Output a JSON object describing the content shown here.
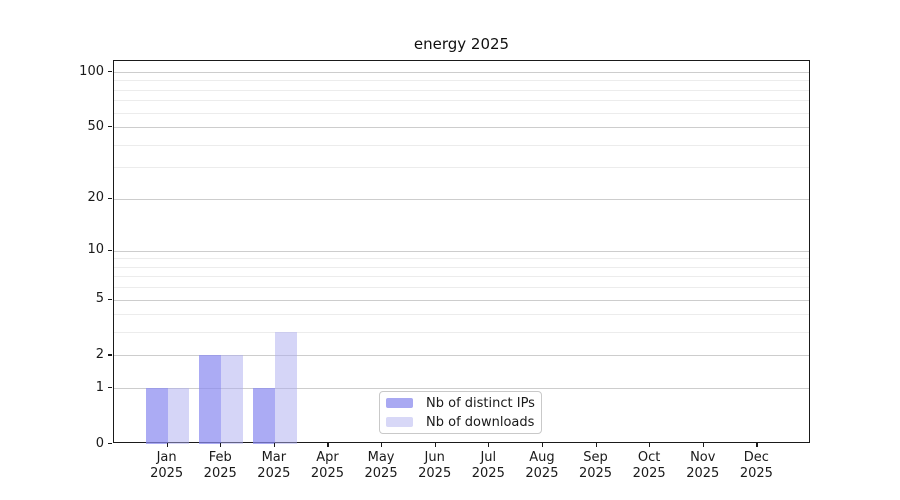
{
  "chart_data": {
    "type": "bar",
    "title": "energy 2025",
    "categories": [
      "Jan",
      "Feb",
      "Mar",
      "Apr",
      "May",
      "Jun",
      "Jul",
      "Aug",
      "Sep",
      "Oct",
      "Nov",
      "Dec"
    ],
    "x_year_label": "2025",
    "series": [
      {
        "name": "Nb of distinct IPs",
        "color": "rgba(138,138,240,0.72)",
        "legend_color": "#a9a9f2",
        "values": [
          1,
          2,
          1,
          0,
          0,
          0,
          0,
          0,
          0,
          0,
          0,
          0
        ]
      },
      {
        "name": "Nb of downloads",
        "color": "rgba(172,172,240,0.5)",
        "legend_color": "#d8d8f7",
        "values": [
          1,
          2,
          3,
          0,
          0,
          0,
          0,
          0,
          0,
          0,
          0,
          0
        ]
      }
    ],
    "xlabel": "",
    "ylabel": "",
    "yscale": "symlog",
    "ylim": [
      0,
      115
    ],
    "ytick_values": [
      0,
      1,
      2,
      5,
      10,
      20,
      50,
      100
    ],
    "ytick_labels": [
      "0",
      "1",
      "2",
      "5",
      "10",
      "20",
      "50",
      "100"
    ],
    "minor_gridline_values": [
      3,
      4,
      6,
      7,
      8,
      9,
      30,
      40,
      60,
      70,
      80,
      90
    ],
    "grid": "horizontal",
    "legend_position": "bottom-center-inside"
  },
  "colors": {
    "major_gridline": "#cdcdcd",
    "minor_gridline": "#ececec",
    "axis": "#1a1a1a",
    "background": "#ffffff"
  }
}
